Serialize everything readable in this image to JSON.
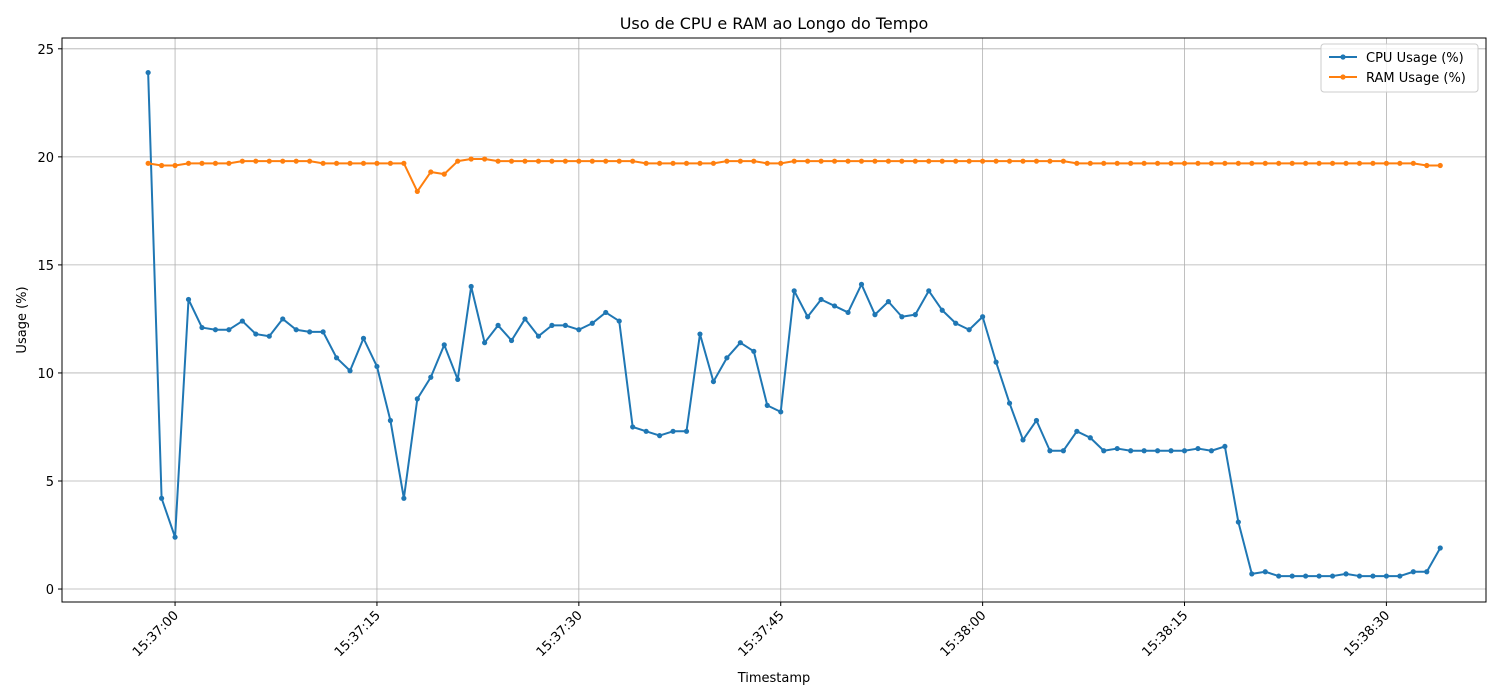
{
  "chart_data": {
    "type": "line",
    "title": "Uso de CPU e RAM ao Longo do Tempo",
    "xlabel": "Timestamp",
    "ylabel": "Usage (%)",
    "x_start": "15:36:58",
    "x_step_seconds": 1,
    "x_ticks": [
      "15:37:00",
      "15:37:15",
      "15:37:30",
      "15:37:45",
      "15:38:00",
      "15:38:15",
      "15:38:30"
    ],
    "y_ticks": [
      0,
      5,
      10,
      15,
      20,
      25
    ],
    "ylim": [
      -0.6,
      25.5
    ],
    "xlim": [
      "15:36:51.6",
      "15:38:37.4"
    ],
    "grid": true,
    "legend_position": "top-right",
    "series": [
      {
        "name": "CPU Usage (%)",
        "color": "#1f77b4",
        "values": [
          23.9,
          4.2,
          2.4,
          13.4,
          12.1,
          12.0,
          12.0,
          12.4,
          11.8,
          11.7,
          12.5,
          12.0,
          11.9,
          11.9,
          10.7,
          10.1,
          11.6,
          10.3,
          7.8,
          4.2,
          8.8,
          9.8,
          11.3,
          9.7,
          14.0,
          11.4,
          12.2,
          11.5,
          12.5,
          11.7,
          12.2,
          12.2,
          12.0,
          12.3,
          12.8,
          12.4,
          7.5,
          7.3,
          7.1,
          7.3,
          7.3,
          11.8,
          9.6,
          10.7,
          11.4,
          11.0,
          8.5,
          8.2,
          13.8,
          12.6,
          13.4,
          13.1,
          12.8,
          14.1,
          12.7,
          13.3,
          12.6,
          12.7,
          13.8,
          12.9,
          12.3,
          12.0,
          12.6,
          10.5,
          8.6,
          6.9,
          7.8,
          6.4,
          6.4,
          7.3,
          7.0,
          6.4,
          6.5,
          6.4,
          6.4,
          6.4,
          6.4,
          6.4,
          6.5,
          6.4,
          6.6,
          3.1,
          0.7,
          0.8,
          0.6,
          0.6,
          0.6,
          0.6,
          0.6,
          0.7,
          0.6,
          0.6,
          0.6,
          0.6,
          0.8,
          0.8,
          1.9
        ]
      },
      {
        "name": "RAM Usage (%)",
        "color": "#ff7f0e",
        "values": [
          19.7,
          19.6,
          19.6,
          19.7,
          19.7,
          19.7,
          19.7,
          19.8,
          19.8,
          19.8,
          19.8,
          19.8,
          19.8,
          19.7,
          19.7,
          19.7,
          19.7,
          19.7,
          19.7,
          19.7,
          18.4,
          19.3,
          19.2,
          19.8,
          19.9,
          19.9,
          19.8,
          19.8,
          19.8,
          19.8,
          19.8,
          19.8,
          19.8,
          19.8,
          19.8,
          19.8,
          19.8,
          19.7,
          19.7,
          19.7,
          19.7,
          19.7,
          19.7,
          19.8,
          19.8,
          19.8,
          19.7,
          19.7,
          19.8,
          19.8,
          19.8,
          19.8,
          19.8,
          19.8,
          19.8,
          19.8,
          19.8,
          19.8,
          19.8,
          19.8,
          19.8,
          19.8,
          19.8,
          19.8,
          19.8,
          19.8,
          19.8,
          19.8,
          19.8,
          19.7,
          19.7,
          19.7,
          19.7,
          19.7,
          19.7,
          19.7,
          19.7,
          19.7,
          19.7,
          19.7,
          19.7,
          19.7,
          19.7,
          19.7,
          19.7,
          19.7,
          19.7,
          19.7,
          19.7,
          19.7,
          19.7,
          19.7,
          19.7,
          19.7,
          19.7,
          19.6,
          19.6
        ]
      }
    ]
  }
}
